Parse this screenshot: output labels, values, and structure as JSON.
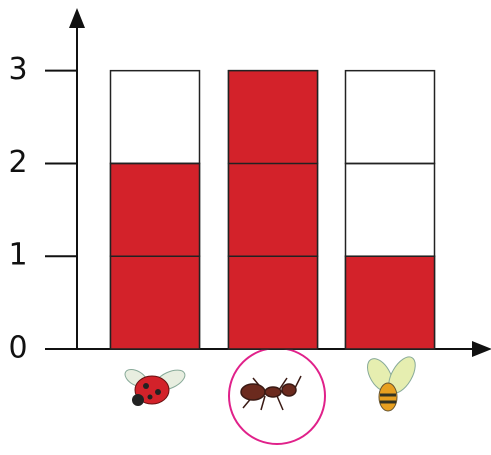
{
  "chart_data": {
    "type": "bar",
    "categories": [
      null,
      null,
      null
    ],
    "values": [
      2,
      3,
      1
    ],
    "color": "#d3222a",
    "ylim": [
      0,
      3.6
    ],
    "yticks": [
      0,
      1,
      2,
      3
    ]
  }
}
